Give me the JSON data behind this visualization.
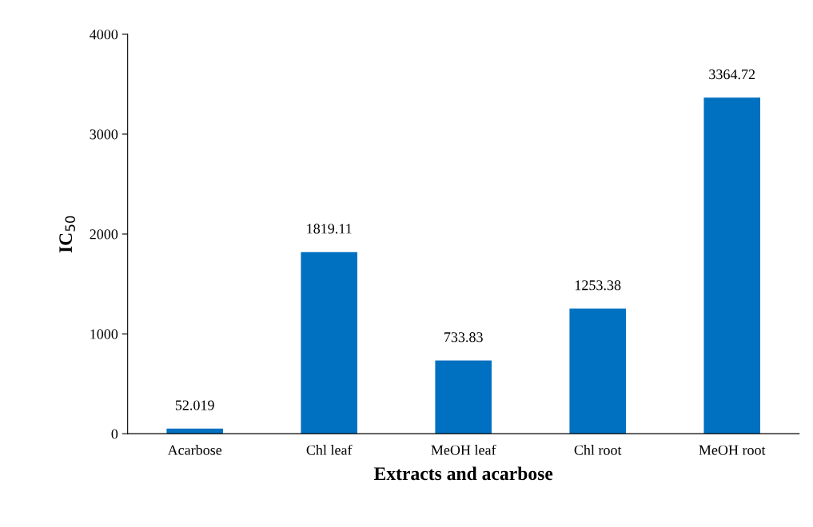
{
  "chart_data": {
    "type": "bar",
    "xlabel": "Extracts and acarbose",
    "ylabel": "IC$_{50}$",
    "categories": [
      "Acarbose",
      "Chl leaf",
      "MeOH leaf",
      "Chl root",
      "MeOH root"
    ],
    "values": [
      52.019,
      1819.11,
      733.83,
      1253.38,
      3364.72
    ],
    "color": "#0070c0",
    "ylim": [
      0,
      4000
    ],
    "yticks": [
      0,
      1000,
      2000,
      3000,
      4000
    ],
    "grid": false,
    "data_labels": true
  }
}
